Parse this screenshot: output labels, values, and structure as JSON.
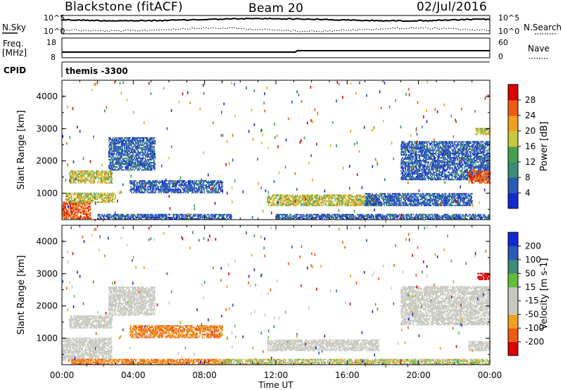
{
  "header": {
    "station": "Blackstone (fitACF)",
    "beam": "Beam 20",
    "date": "02/Jul/2016"
  },
  "panels": {
    "noise": {
      "left_label": "N.Sky",
      "right_label": "N.Search",
      "ticks": [
        "10^5",
        "10^0"
      ],
      "right_legend_style": "dotted"
    },
    "freq": {
      "left_label": "Freq.",
      "left_unit": "[MHz]",
      "left_ticks": [
        "18",
        "8"
      ],
      "right_label": "Nave",
      "right_ticks": [
        "60",
        "0"
      ],
      "right_legend_style": "dotted"
    },
    "cpid": {
      "label": "CPID",
      "value": "themis -3300"
    }
  },
  "colors": {
    "power": [
      "#1428d2",
      "#2a5ab4",
      "#3c8c78",
      "#46a050",
      "#c8c83c",
      "#f0a01e",
      "#f05a14",
      "#dc0000"
    ],
    "velocity": [
      "#1428d2",
      "#2a5ab4",
      "#3c8c78",
      "#64be3c",
      "#c8c8c0",
      "#c8c8c0",
      "#f0a01e",
      "#f05a14",
      "#dc0000"
    ]
  },
  "chart_data": [
    {
      "type": "heatmap",
      "name": "power",
      "ylabel": "Slant Range [km]",
      "yticks": [
        "1000",
        "2000",
        "3000",
        "4000"
      ],
      "ylim": [
        180,
        4500
      ],
      "xlim_hours": [
        0,
        24
      ],
      "colorbar": {
        "label": "Power [dB]",
        "ticks": [
          "4",
          "8",
          "12",
          "16",
          "20",
          "24",
          "28"
        ],
        "range": [
          0,
          32
        ]
      },
      "echo_regions": [
        {
          "t": [
            0.0,
            1.6
          ],
          "range_km": [
            200,
            700
          ],
          "level": "high"
        },
        {
          "t": [
            0.2,
            3.0
          ],
          "range_km": [
            700,
            1000
          ],
          "level": "medium"
        },
        {
          "t": [
            0.4,
            2.8
          ],
          "range_km": [
            1300,
            1700
          ],
          "level": "medium"
        },
        {
          "t": [
            2.6,
            5.2
          ],
          "range_km": [
            1700,
            2700
          ],
          "level": "low"
        },
        {
          "t": [
            3.8,
            9.0
          ],
          "range_km": [
            1000,
            1400
          ],
          "level": "low"
        },
        {
          "t": [
            2.0,
            9.5
          ],
          "range_km": [
            180,
            320
          ],
          "level": "low"
        },
        {
          "t": [
            11.5,
            17.8
          ],
          "range_km": [
            600,
            950
          ],
          "level": "medium"
        },
        {
          "t": [
            12.0,
            24.0
          ],
          "range_km": [
            180,
            320
          ],
          "level": "low"
        },
        {
          "t": [
            17.0,
            23.0
          ],
          "range_km": [
            600,
            1000
          ],
          "level": "low"
        },
        {
          "t": [
            19.0,
            24.0
          ],
          "range_km": [
            1400,
            2600
          ],
          "level": "low"
        },
        {
          "t": [
            22.8,
            24.0
          ],
          "range_km": [
            1300,
            1700
          ],
          "level": "high"
        },
        {
          "t": [
            23.2,
            24.0
          ],
          "range_km": [
            2800,
            3000
          ],
          "level": "medium"
        }
      ]
    },
    {
      "type": "heatmap",
      "name": "velocity",
      "xlabel": "Time UT",
      "ylabel": "Slant Range [km]",
      "xticks": [
        "00:00",
        "04:00",
        "08:00",
        "12:00",
        "16:00",
        "20:00",
        "00:00"
      ],
      "yticks": [
        "1000",
        "2000",
        "3000",
        "4000"
      ],
      "ylim": [
        180,
        4500
      ],
      "xlim_hours": [
        0,
        24
      ],
      "colorbar": {
        "label": "Velocity [m s-1]",
        "ticks": [
          "200",
          "100",
          "50",
          "15",
          "-15",
          "-50",
          "-100",
          "-200"
        ],
        "range": [
          -250,
          250
        ]
      },
      "echo_regions": [
        {
          "t": [
            0.0,
            2.8
          ],
          "range_km": [
            300,
            1000
          ],
          "level": "ground"
        },
        {
          "t": [
            0.4,
            2.8
          ],
          "range_km": [
            1300,
            1700
          ],
          "level": "ground"
        },
        {
          "t": [
            2.6,
            5.2
          ],
          "range_km": [
            1700,
            2600
          ],
          "level": "ground"
        },
        {
          "t": [
            3.8,
            9.0
          ],
          "range_km": [
            1000,
            1400
          ],
          "level": "away"
        },
        {
          "t": [
            0.5,
            9.5
          ],
          "range_km": [
            180,
            320
          ],
          "level": "away"
        },
        {
          "t": [
            11.5,
            17.8
          ],
          "range_km": [
            600,
            950
          ],
          "level": "ground"
        },
        {
          "t": [
            9.0,
            24.0
          ],
          "range_km": [
            180,
            320
          ],
          "level": "toward-weak"
        },
        {
          "t": [
            19.0,
            24.0
          ],
          "range_km": [
            1400,
            2600
          ],
          "level": "ground"
        },
        {
          "t": [
            22.8,
            24.0
          ],
          "range_km": [
            600,
            900
          ],
          "level": "ground"
        },
        {
          "t": [
            23.3,
            24.0
          ],
          "range_km": [
            2800,
            3000
          ],
          "level": "away-strong"
        }
      ]
    }
  ]
}
